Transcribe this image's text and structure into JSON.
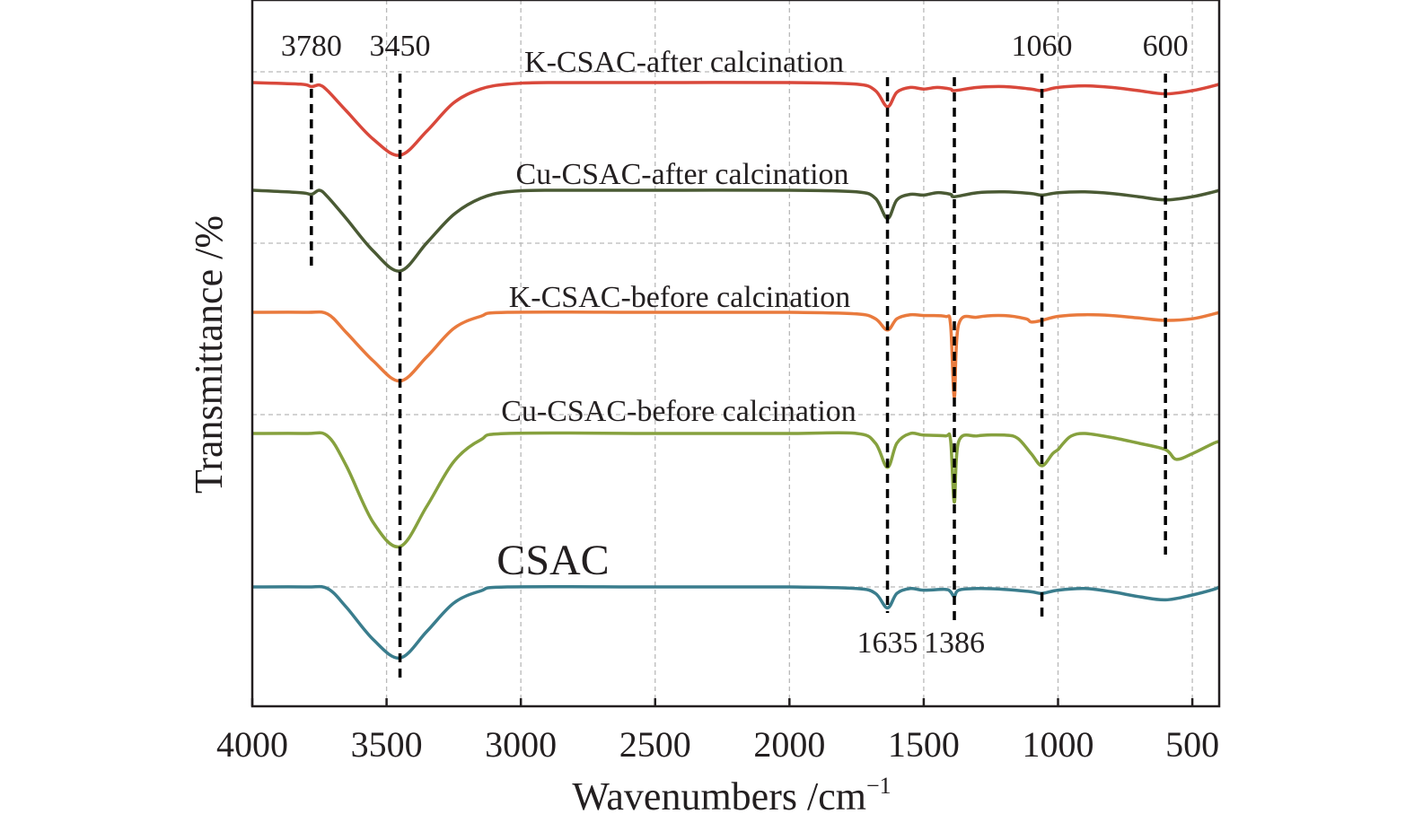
{
  "chart_data": {
    "type": "line",
    "title": "",
    "xlabel": "Wavenumbers /cm",
    "xlabel_sup": "−1",
    "ylabel": "Transmittance /%",
    "xlim": [
      4000,
      400
    ],
    "x_reversed": true,
    "x_ticks": [
      4000,
      3500,
      3000,
      2500,
      2000,
      1500,
      1000,
      500
    ],
    "y_ticks_shown": false,
    "grid": true,
    "series": [
      {
        "name": "K-CSAC-after calcination",
        "color": "#d9483b",
        "points": [
          [
            4000,
            0
          ],
          [
            3820,
            -2
          ],
          [
            3780,
            -5
          ],
          [
            3750,
            -3
          ],
          [
            3720,
            -10
          ],
          [
            3650,
            -35
          ],
          [
            3550,
            -70
          ],
          [
            3450,
            -90
          ],
          [
            3350,
            -60
          ],
          [
            3250,
            -25
          ],
          [
            3150,
            -8
          ],
          [
            3050,
            -2
          ],
          [
            2900,
            0
          ],
          [
            2500,
            0
          ],
          [
            2000,
            0
          ],
          [
            1750,
            -2
          ],
          [
            1680,
            -10
          ],
          [
            1635,
            -30
          ],
          [
            1600,
            -12
          ],
          [
            1550,
            -6
          ],
          [
            1500,
            -8
          ],
          [
            1450,
            -6
          ],
          [
            1400,
            -8
          ],
          [
            1386,
            -10
          ],
          [
            1300,
            -6
          ],
          [
            1200,
            -5
          ],
          [
            1100,
            -8
          ],
          [
            1060,
            -10
          ],
          [
            1000,
            -6
          ],
          [
            900,
            -4
          ],
          [
            800,
            -6
          ],
          [
            700,
            -10
          ],
          [
            600,
            -14
          ],
          [
            500,
            -10
          ],
          [
            420,
            -4
          ],
          [
            400,
            -2
          ]
        ]
      },
      {
        "name": "Cu-CSAC-after calcination",
        "color": "#4a5a34",
        "points": [
          [
            4000,
            0
          ],
          [
            3820,
            -3
          ],
          [
            3780,
            -5
          ],
          [
            3750,
            0
          ],
          [
            3720,
            -8
          ],
          [
            3650,
            -35
          ],
          [
            3550,
            -75
          ],
          [
            3450,
            -100
          ],
          [
            3350,
            -65
          ],
          [
            3250,
            -30
          ],
          [
            3150,
            -10
          ],
          [
            3050,
            -2
          ],
          [
            2900,
            0
          ],
          [
            2500,
            0
          ],
          [
            2000,
            0
          ],
          [
            1750,
            -2
          ],
          [
            1680,
            -10
          ],
          [
            1635,
            -35
          ],
          [
            1600,
            -12
          ],
          [
            1550,
            -5
          ],
          [
            1500,
            -6
          ],
          [
            1450,
            -3
          ],
          [
            1400,
            -5
          ],
          [
            1386,
            -8
          ],
          [
            1300,
            -3
          ],
          [
            1200,
            -2
          ],
          [
            1100,
            -4
          ],
          [
            1060,
            -6
          ],
          [
            1000,
            -3
          ],
          [
            900,
            -2
          ],
          [
            800,
            -4
          ],
          [
            700,
            -8
          ],
          [
            600,
            -12
          ],
          [
            500,
            -8
          ],
          [
            420,
            -2
          ],
          [
            400,
            0
          ]
        ]
      },
      {
        "name": "K-CSAC-before calcination",
        "color": "#e97a3d",
        "points": [
          [
            4000,
            0
          ],
          [
            3800,
            0
          ],
          [
            3720,
            -2
          ],
          [
            3650,
            -25
          ],
          [
            3550,
            -60
          ],
          [
            3450,
            -85
          ],
          [
            3350,
            -55
          ],
          [
            3250,
            -20
          ],
          [
            3150,
            -5
          ],
          [
            3050,
            0
          ],
          [
            2500,
            0
          ],
          [
            2000,
            0
          ],
          [
            1750,
            -2
          ],
          [
            1680,
            -8
          ],
          [
            1635,
            -22
          ],
          [
            1600,
            -8
          ],
          [
            1550,
            -3
          ],
          [
            1500,
            -4
          ],
          [
            1420,
            -5
          ],
          [
            1400,
            -15
          ],
          [
            1386,
            -105
          ],
          [
            1370,
            -15
          ],
          [
            1300,
            -6
          ],
          [
            1200,
            -4
          ],
          [
            1120,
            -8
          ],
          [
            1100,
            -12
          ],
          [
            1060,
            -10
          ],
          [
            1000,
            -5
          ],
          [
            900,
            -3
          ],
          [
            800,
            -4
          ],
          [
            700,
            -7
          ],
          [
            600,
            -10
          ],
          [
            500,
            -8
          ],
          [
            420,
            -2
          ],
          [
            400,
            0
          ]
        ]
      },
      {
        "name": "Cu-CSAC-before calcination",
        "color": "#86a13e",
        "points": [
          [
            4000,
            0
          ],
          [
            3800,
            0
          ],
          [
            3720,
            -3
          ],
          [
            3650,
            -40
          ],
          [
            3550,
            -110
          ],
          [
            3450,
            -140
          ],
          [
            3350,
            -90
          ],
          [
            3250,
            -35
          ],
          [
            3150,
            -8
          ],
          [
            3050,
            0
          ],
          [
            2500,
            0
          ],
          [
            2000,
            0
          ],
          [
            1750,
            0
          ],
          [
            1680,
            -12
          ],
          [
            1635,
            -42
          ],
          [
            1600,
            -12
          ],
          [
            1550,
            0
          ],
          [
            1500,
            -2
          ],
          [
            1420,
            -3
          ],
          [
            1400,
            -8
          ],
          [
            1386,
            -85
          ],
          [
            1370,
            -10
          ],
          [
            1300,
            -3
          ],
          [
            1200,
            -2
          ],
          [
            1150,
            -6
          ],
          [
            1100,
            -25
          ],
          [
            1060,
            -40
          ],
          [
            1020,
            -25
          ],
          [
            1000,
            -20
          ],
          [
            980,
            -12
          ],
          [
            950,
            -3
          ],
          [
            900,
            0
          ],
          [
            800,
            -5
          ],
          [
            700,
            -12
          ],
          [
            600,
            -20
          ],
          [
            560,
            -32
          ],
          [
            500,
            -25
          ],
          [
            420,
            -12
          ],
          [
            400,
            -10
          ]
        ]
      },
      {
        "name": "CSAC",
        "color": "#3a7d8d",
        "points": [
          [
            4000,
            0
          ],
          [
            3800,
            0
          ],
          [
            3720,
            -2
          ],
          [
            3650,
            -25
          ],
          [
            3550,
            -65
          ],
          [
            3450,
            -88
          ],
          [
            3350,
            -55
          ],
          [
            3250,
            -20
          ],
          [
            3150,
            -5
          ],
          [
            3050,
            0
          ],
          [
            2500,
            0
          ],
          [
            2000,
            0
          ],
          [
            1750,
            -2
          ],
          [
            1680,
            -8
          ],
          [
            1635,
            -26
          ],
          [
            1600,
            -8
          ],
          [
            1550,
            -2
          ],
          [
            1500,
            -4
          ],
          [
            1420,
            -3
          ],
          [
            1400,
            -6
          ],
          [
            1386,
            -12
          ],
          [
            1370,
            -4
          ],
          [
            1300,
            -2
          ],
          [
            1200,
            -3
          ],
          [
            1100,
            -6
          ],
          [
            1060,
            -8
          ],
          [
            1000,
            -4
          ],
          [
            900,
            -2
          ],
          [
            800,
            -6
          ],
          [
            700,
            -12
          ],
          [
            600,
            -16
          ],
          [
            500,
            -10
          ],
          [
            420,
            -3
          ],
          [
            400,
            0
          ]
        ]
      }
    ],
    "peak_markers": [
      {
        "x": 3780,
        "label": "3780",
        "label_position": "top"
      },
      {
        "x": 3450,
        "label": "3450",
        "label_position": "top"
      },
      {
        "x": 1635,
        "label": "1635",
        "label_position": "bottom"
      },
      {
        "x": 1386,
        "label": "1386",
        "label_position": "bottom"
      },
      {
        "x": 1060,
        "label": "1060",
        "label_position": "top"
      },
      {
        "x": 600,
        "label": "600",
        "label_position": "top"
      }
    ]
  }
}
